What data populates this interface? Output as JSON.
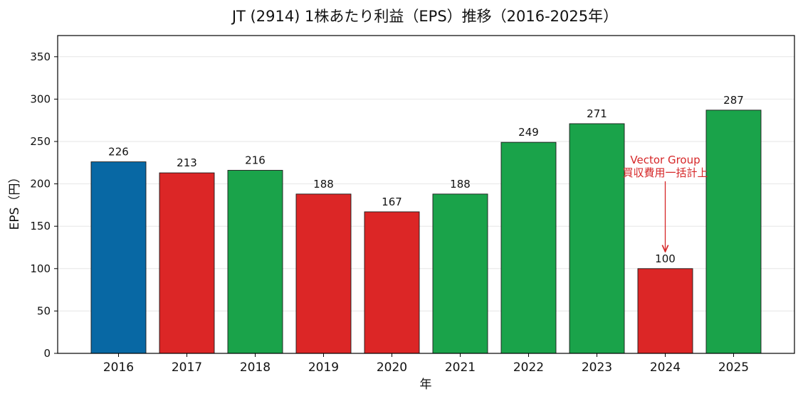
{
  "chart_data": {
    "type": "bar",
    "title": "JT (2914) 1株あたり利益（EPS）推移（2016-2025年）",
    "xlabel": "年",
    "ylabel": "EPS（円）",
    "categories": [
      "2016",
      "2017",
      "2018",
      "2019",
      "2020",
      "2021",
      "2022",
      "2023",
      "2024",
      "2025"
    ],
    "values": [
      226,
      213,
      216,
      188,
      167,
      188,
      249,
      271,
      100,
      287
    ],
    "data_labels": [
      "226",
      "213",
      "216",
      "188",
      "167",
      "188",
      "249",
      "271",
      "100",
      "287"
    ],
    "bar_colors": [
      "#0868a4",
      "#dc2626",
      "#1aa34a",
      "#dc2626",
      "#dc2626",
      "#1aa34a",
      "#1aa34a",
      "#1aa34a",
      "#dc2626",
      "#1aa34a"
    ],
    "ylim": [
      0,
      375
    ],
    "yticks": [
      0,
      50,
      100,
      150,
      200,
      250,
      300,
      350
    ],
    "grid": "horizontal",
    "legend": "none",
    "annotation": {
      "category": "2024",
      "line1": "Vector Group",
      "line2": "買収費用一括計上",
      "text_y_value": 213,
      "arrow_tail_value": 203,
      "arrow_head_value": 120,
      "color": "#d62728"
    }
  }
}
